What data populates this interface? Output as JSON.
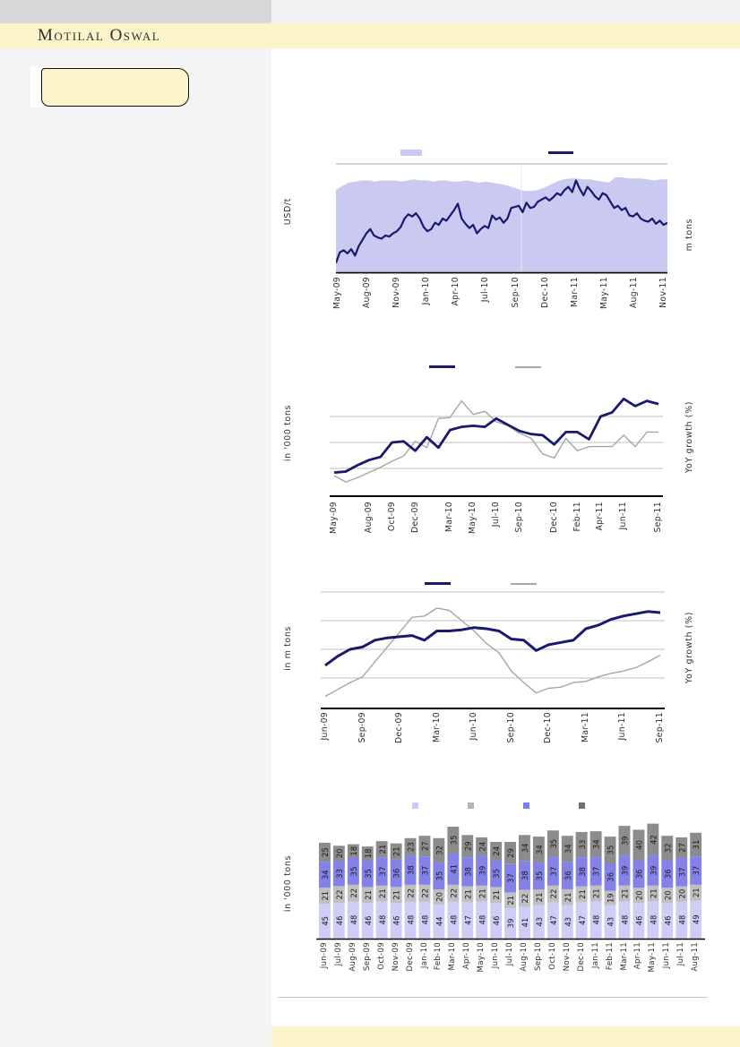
{
  "brand": {
    "name": "Motilal Oswal"
  },
  "colors": {
    "accent_yellow": "#fcf5cb",
    "navy": "#191970",
    "gray_line": "#a6a6a6",
    "area_fill": "#c9c9f2",
    "gridline": "#bfbfbf"
  },
  "chart_data": [
    {
      "id": "price-and-volume",
      "type": "area",
      "note": "daily price line (navy) over volume area (lavender); y axes unlabeled, values are relative 0-100 estimates",
      "ylabel_left": "USD/t",
      "ylabel_right": "m tons",
      "x_ticks": [
        "May-09",
        "Aug-09",
        "Nov-09",
        "Jan-10",
        "Apr-10",
        "Jul-10",
        "Sep-10",
        "Dec-10",
        "Mar-11",
        "May-11",
        "Aug-11",
        "Nov-11"
      ],
      "legend": [
        {
          "swatch": "area",
          "color": "#c9c9f2",
          "label": ""
        },
        {
          "swatch": "line",
          "color": "#191970",
          "label": ""
        }
      ],
      "area_values": [
        77,
        81,
        84,
        85,
        86,
        86,
        85,
        86,
        86,
        86,
        85,
        86,
        87,
        86,
        86,
        85,
        86,
        86,
        85,
        85,
        86,
        85,
        84,
        85,
        84,
        83,
        82,
        80,
        78,
        76,
        76,
        77,
        79,
        82,
        85,
        87,
        88,
        88,
        87,
        87,
        86,
        85,
        84,
        89,
        89,
        88,
        88,
        88,
        87,
        86,
        87,
        87
      ],
      "line_values": [
        8,
        18,
        20,
        17,
        21,
        15,
        24,
        30,
        36,
        40,
        34,
        32,
        31,
        34,
        33,
        36,
        38,
        42,
        50,
        54,
        52,
        55,
        50,
        42,
        38,
        40,
        46,
        44,
        50,
        48,
        53,
        58,
        64,
        50,
        45,
        41,
        44,
        36,
        40,
        43,
        41,
        53,
        49,
        51,
        46,
        50,
        60,
        61,
        62,
        56,
        65,
        60,
        61,
        66,
        68,
        70,
        67,
        70,
        74,
        72,
        77,
        80,
        75,
        86,
        78,
        72,
        80,
        76,
        71,
        68,
        74,
        72,
        66,
        60,
        62,
        58,
        60,
        53,
        52,
        55,
        50,
        48,
        47,
        50,
        45,
        48,
        44,
        46
      ]
    },
    {
      "id": "monthly-volume-vs-yoy-000tons",
      "type": "line",
      "note": "monthly May-09 to Sep-11; y axes unlabeled, values are relative 0-100 estimates",
      "ylabel_left": "in '000 tons",
      "ylabel_right": "YoY growth (%)",
      "x_ticks": [
        "May-09",
        "Aug-09",
        "Oct-09",
        "Dec-09",
        "Mar-10",
        "May-10",
        "Jul-10",
        "Sep-10",
        "Dec-10",
        "Feb-11",
        "Apr-11",
        "Jun-11",
        "Sep-11"
      ],
      "tick_positions": [
        0,
        3,
        5,
        7,
        10,
        12,
        14,
        16,
        19,
        21,
        23,
        25,
        28
      ],
      "gridlines": [
        25,
        50,
        75
      ],
      "series": [
        {
          "name": "volume-navy",
          "color": "#191970",
          "width": 2.8,
          "values": [
            21,
            22,
            28,
            33,
            36,
            50,
            51,
            42,
            55,
            45,
            62,
            65,
            66,
            65,
            73,
            67,
            61,
            58,
            57,
            48,
            60,
            60,
            53,
            75,
            79,
            92,
            85,
            90,
            87
          ]
        },
        {
          "name": "yoy-gray",
          "color": "#a6a6a6",
          "width": 1.4,
          "values": [
            18,
            12,
            16,
            21,
            26,
            32,
            37,
            51,
            45,
            73,
            74,
            90,
            77,
            80,
            70,
            66,
            59,
            54,
            39,
            35,
            54,
            42,
            46,
            46,
            46,
            57,
            46,
            60,
            60
          ]
        }
      ]
    },
    {
      "id": "monthly-volume-vs-yoy-mtons",
      "type": "line",
      "note": "monthly Jun-09 to Sep-11; y axes unlabeled, values are relative 0-100 estimates",
      "ylabel_left": "in m tons",
      "ylabel_right": "YoY growth (%)",
      "x_ticks": [
        "Jun-09",
        "Sep-09",
        "Dec-09",
        "Mar-10",
        "Jun-10",
        "Sep-10",
        "Dec-10",
        "Mar-11",
        "Jun-11",
        "Sep-11"
      ],
      "tick_positions": [
        0,
        3,
        6,
        9,
        12,
        15,
        18,
        21,
        24,
        27
      ],
      "gridlines": [
        25,
        50,
        75,
        100
      ],
      "series": [
        {
          "name": "volume-navy",
          "color": "#191970",
          "width": 3,
          "values": [
            36,
            44,
            50,
            52,
            58,
            60,
            61,
            62,
            58,
            66,
            66,
            67,
            69,
            68,
            66,
            59,
            58,
            49,
            54,
            56,
            58,
            68,
            71,
            76,
            79,
            81,
            83,
            82
          ]
        },
        {
          "name": "yoy-gray",
          "color": "#a6a6a6",
          "width": 1.4,
          "values": [
            9,
            15,
            21,
            26,
            39,
            52,
            65,
            78,
            79,
            86,
            84,
            75,
            66,
            55,
            47,
            31,
            21,
            12,
            16,
            17,
            21,
            22,
            26,
            29,
            31,
            34,
            39,
            45
          ]
        }
      ]
    },
    {
      "id": "stacked-monthly-volumes",
      "type": "stacked-bar",
      "ylabel_left": "in '000 tons",
      "categories": [
        "Jun-09",
        "Jul-09",
        "Aug-09",
        "Sep-09",
        "Oct-09",
        "Nov-09",
        "Dec-09",
        "Jan-10",
        "Feb-10",
        "Mar-10",
        "Apr-10",
        "May-10",
        "Jun-10",
        "Jul-10",
        "Aug-10",
        "Sep-10",
        "Oct-10",
        "Nov-10",
        "Dec-10",
        "Jan-11",
        "Feb-11",
        "Mar-11",
        "Apr-11",
        "May-11",
        "Jun-11",
        "Jul-11",
        "Aug-11"
      ],
      "legend_colors": [
        "#c9c9f4",
        "#b3b3b3",
        "#7e7ef0",
        "#707070"
      ],
      "series": [
        {
          "name": "segment-1-bottom",
          "color": "#cdcdf5",
          "values": [
            45,
            46,
            48,
            46,
            48,
            46,
            48,
            48,
            44,
            48,
            47,
            48,
            46,
            39,
            41,
            43,
            47,
            43,
            47,
            48,
            43,
            48,
            46,
            48,
            46,
            48,
            49
          ]
        },
        {
          "name": "segment-2",
          "color": "#c0c0c0",
          "values": [
            21,
            22,
            22,
            21,
            21,
            21,
            22,
            22,
            20,
            22,
            21,
            21,
            21,
            21,
            22,
            21,
            22,
            21,
            21,
            21,
            19,
            21,
            20,
            21,
            20,
            20,
            21
          ]
        },
        {
          "name": "segment-3",
          "color": "#8282e8",
          "values": [
            34,
            33,
            35,
            35,
            37,
            36,
            38,
            37,
            35,
            41,
            38,
            39,
            35,
            37,
            38,
            35,
            37,
            36,
            38,
            37,
            36,
            39,
            36,
            39,
            36,
            37,
            37
          ]
        },
        {
          "name": "segment-4-top",
          "color": "#8c8c8c",
          "values": [
            25,
            20,
            18,
            18,
            21,
            21,
            23,
            27,
            32,
            35,
            29,
            24,
            24,
            29,
            34,
            34,
            35,
            34,
            33,
            34,
            35,
            39,
            40,
            42,
            32,
            27,
            31
          ]
        }
      ]
    }
  ]
}
